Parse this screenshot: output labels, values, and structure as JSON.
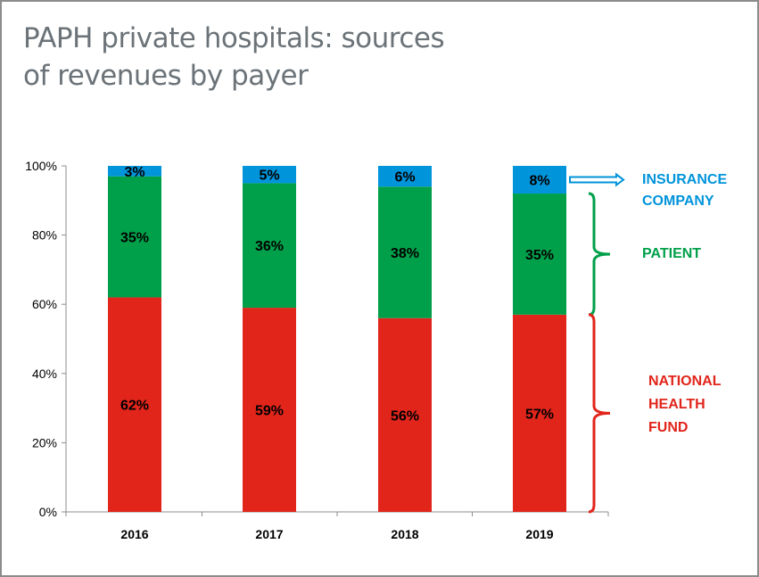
{
  "title": "PAPH private hospitals: sources of revenues by payer",
  "title_lines": [
    "PAPH private hospitals: sources",
    "of revenues by payer"
  ],
  "colors": {
    "national_health_fund": "#e1251b",
    "patient": "#00a04a",
    "insurance_company": "#0094db",
    "title": "#6b7378"
  },
  "annotations": {
    "insurance": [
      "INSURANCE",
      "COMPANY"
    ],
    "patient": [
      "PATIENT"
    ],
    "national": [
      "NATIONAL",
      "HEALTH",
      "FUND"
    ]
  },
  "chart_data": {
    "type": "bar",
    "stacked": true,
    "title": "PAPH private hospitals: sources of revenues by payer",
    "categories": [
      "2016",
      "2017",
      "2018",
      "2019"
    ],
    "series": [
      {
        "name": "NATIONAL HEALTH FUND",
        "values": [
          62,
          59,
          56,
          57
        ],
        "labels": [
          "62%",
          "59%",
          "56%",
          "57%"
        ]
      },
      {
        "name": "PATIENT",
        "values": [
          35,
          36,
          38,
          35
        ],
        "labels": [
          "35%",
          "36%",
          "38%",
          "35%"
        ]
      },
      {
        "name": "INSURANCE COMPANY",
        "values": [
          3,
          5,
          6,
          8
        ],
        "labels": [
          "3%",
          "5%",
          "6%",
          "8%"
        ]
      }
    ],
    "ylim": [
      0,
      100
    ],
    "yticks": [
      "0%",
      "20%",
      "40%",
      "60%",
      "80%",
      "100%"
    ],
    "xlabel": "",
    "ylabel": "",
    "grid": false
  }
}
